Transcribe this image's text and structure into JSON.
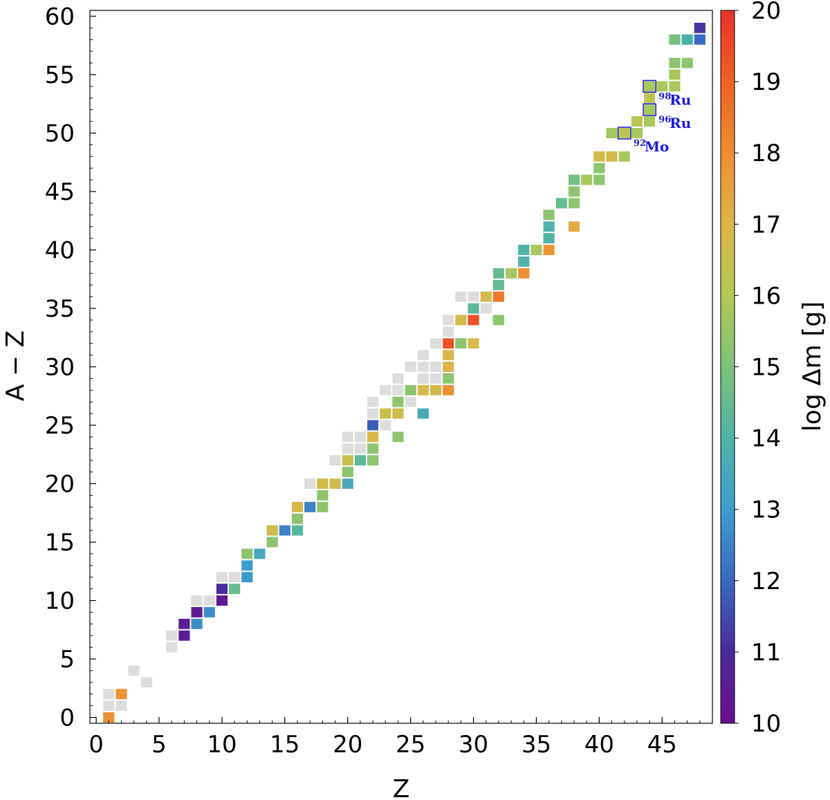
{
  "chart_data": {
    "type": "heatmap",
    "xlabel": "Z",
    "ylabel": "A − Z",
    "xlim": [
      -0.5,
      49
    ],
    "ylim": [
      -0.5,
      60.5
    ],
    "xticks": [
      0,
      5,
      10,
      15,
      20,
      25,
      30,
      35,
      40,
      45
    ],
    "yticks": [
      0,
      5,
      10,
      15,
      20,
      25,
      30,
      35,
      40,
      45,
      50,
      55,
      60
    ],
    "colorbar": {
      "label": "log Δm [g]",
      "min": 10,
      "max": 20,
      "ticks": [
        10,
        11,
        12,
        13,
        14,
        15,
        16,
        17,
        18,
        19,
        20
      ],
      "colormap": "Spectral_r",
      "gray_color": "#dddddd"
    },
    "cells": [
      [
        1,
        0,
        17.9
      ],
      [
        1,
        1,
        null
      ],
      [
        1,
        2,
        null
      ],
      [
        2,
        1,
        null
      ],
      [
        2,
        2,
        17.9
      ],
      [
        3,
        4,
        null
      ],
      [
        4,
        3,
        null
      ],
      [
        6,
        6,
        null
      ],
      [
        6,
        7,
        null
      ],
      [
        7,
        7,
        10.5
      ],
      [
        7,
        8,
        10.5
      ],
      [
        8,
        8,
        12.7
      ],
      [
        8,
        9,
        10.5
      ],
      [
        8,
        10,
        null
      ],
      [
        9,
        9,
        12.7
      ],
      [
        9,
        10,
        null
      ],
      [
        10,
        10,
        10.4
      ],
      [
        10,
        11,
        11.0
      ],
      [
        10,
        12,
        null
      ],
      [
        11,
        11,
        14.5
      ],
      [
        11,
        12,
        null
      ],
      [
        12,
        12,
        12.9
      ],
      [
        12,
        13,
        13.0
      ],
      [
        12,
        14,
        15.3
      ],
      [
        13,
        14,
        13.5
      ],
      [
        14,
        15,
        15.3
      ],
      [
        14,
        16,
        16.7
      ],
      [
        15,
        16,
        12.5
      ],
      [
        16,
        16,
        14.2
      ],
      [
        16,
        17,
        15.3
      ],
      [
        16,
        18,
        16.9
      ],
      [
        17,
        18,
        12.5
      ],
      [
        18,
        18,
        15.3
      ],
      [
        18,
        19,
        15.3
      ],
      [
        18,
        20,
        16.8
      ],
      [
        17,
        20,
        null
      ],
      [
        19,
        20,
        16.6
      ],
      [
        20,
        20,
        13.6
      ],
      [
        20,
        21,
        15.3
      ],
      [
        20,
        22,
        16.5
      ],
      [
        19,
        22,
        null
      ],
      [
        20,
        23,
        null
      ],
      [
        20,
        24,
        null
      ],
      [
        21,
        22,
        14.3
      ],
      [
        21,
        23,
        null
      ],
      [
        21,
        24,
        null
      ],
      [
        22,
        22,
        15.3
      ],
      [
        22,
        23,
        15.3
      ],
      [
        22,
        24,
        16.9
      ],
      [
        22,
        25,
        11.8
      ],
      [
        22,
        26,
        null
      ],
      [
        22,
        27,
        null
      ],
      [
        23,
        25,
        null
      ],
      [
        23,
        26,
        16.5
      ],
      [
        23,
        28,
        null
      ],
      [
        24,
        24,
        15.3
      ],
      [
        24,
        26,
        16.8
      ],
      [
        24,
        27,
        15.3
      ],
      [
        24,
        29,
        null
      ],
      [
        24,
        28,
        null
      ],
      [
        25,
        27,
        null
      ],
      [
        25,
        28,
        15.3
      ],
      [
        25,
        30,
        null
      ],
      [
        26,
        26,
        13.6
      ],
      [
        26,
        28,
        16.8
      ],
      [
        26,
        29,
        null
      ],
      [
        26,
        30,
        null
      ],
      [
        26,
        31,
        null
      ],
      [
        27,
        28,
        16.8
      ],
      [
        27,
        29,
        null
      ],
      [
        27,
        30,
        null
      ],
      [
        28,
        28,
        17.9
      ],
      [
        28,
        29,
        15.3
      ],
      [
        28,
        30,
        16.9
      ],
      [
        28,
        31,
        16.9
      ],
      [
        28,
        32,
        19.3
      ],
      [
        28,
        33,
        null
      ],
      [
        28,
        34,
        null
      ],
      [
        27,
        32,
        null
      ],
      [
        29,
        32,
        15.3
      ],
      [
        29,
        34,
        16.8
      ],
      [
        29,
        36,
        null
      ],
      [
        30,
        32,
        16.8
      ],
      [
        30,
        34,
        19.3
      ],
      [
        30,
        35,
        14.3
      ],
      [
        30,
        36,
        null
      ],
      [
        31,
        35,
        null
      ],
      [
        31,
        36,
        16.8
      ],
      [
        32,
        34,
        15.3
      ],
      [
        32,
        36,
        18.5
      ],
      [
        32,
        37,
        14.5
      ],
      [
        32,
        38,
        14.5
      ],
      [
        33,
        38,
        15.8
      ],
      [
        34,
        38,
        18.0
      ],
      [
        34,
        39,
        14.0
      ],
      [
        34,
        40,
        14.0
      ],
      [
        35,
        40,
        15.8
      ],
      [
        36,
        40,
        17.9
      ],
      [
        36,
        41,
        14.0
      ],
      [
        36,
        42,
        14.0
      ],
      [
        36,
        43,
        15.3
      ],
      [
        37,
        44,
        14.5
      ],
      [
        38,
        42,
        17.2
      ],
      [
        38,
        44,
        15.3
      ],
      [
        38,
        45,
        15.3
      ],
      [
        38,
        46,
        14.8
      ],
      [
        39,
        46,
        15.8
      ],
      [
        40,
        46,
        15.3
      ],
      [
        40,
        47,
        15.3
      ],
      [
        40,
        48,
        16.8
      ],
      [
        41,
        48,
        16.8
      ],
      [
        42,
        48,
        15.8
      ],
      [
        41,
        50,
        15.7
      ],
      [
        42,
        50,
        16.2
      ],
      [
        43,
        50,
        15.8
      ],
      [
        43,
        51,
        16.2
      ],
      [
        44,
        51,
        15.8
      ],
      [
        44,
        52,
        15.8
      ],
      [
        44,
        53,
        16.2
      ],
      [
        44,
        54,
        15.8
      ],
      [
        45,
        54,
        15.8
      ],
      [
        46,
        54,
        15.8
      ],
      [
        46,
        55,
        15.8
      ],
      [
        46,
        56,
        15.3
      ],
      [
        47,
        56,
        15.3
      ],
      [
        46,
        58,
        14.8
      ],
      [
        47,
        58,
        13.9
      ],
      [
        48,
        58,
        12.0
      ],
      [
        48,
        59,
        11.2
      ]
    ],
    "annotations": [
      {
        "sup": "98",
        "sym": "Ru",
        "z": 44,
        "n": 54
      },
      {
        "sup": "96",
        "sym": "Ru",
        "z": 44,
        "n": 52
      },
      {
        "sup": "92",
        "sym": "Mo",
        "z": 42,
        "n": 50
      }
    ]
  }
}
